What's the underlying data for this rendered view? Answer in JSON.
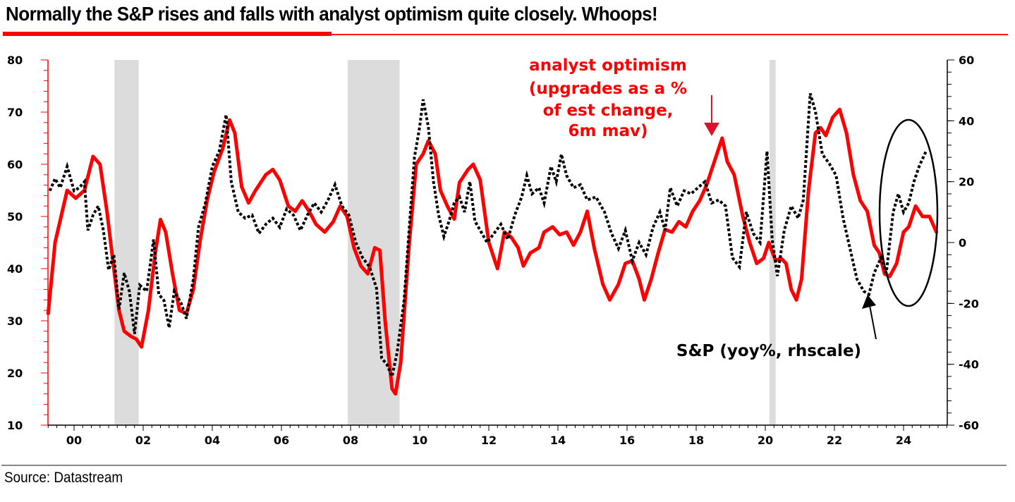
{
  "title": "Normally the S&P rises and falls with analyst optimism quite closely. Whoops!",
  "source": "Source: Datastream",
  "colors": {
    "analyst": "#ff0000",
    "sp": "#000000",
    "recession": "#dcdcdc",
    "title_rule": "#ff0000"
  },
  "chart_data": {
    "type": "line",
    "title": "Normally the S&P rises and falls with analyst optimism quite closely. Whoops!",
    "xlabel": "",
    "x_range": [
      1999.25,
      2025.75
    ],
    "x_ticks": [
      "00",
      "02",
      "04",
      "06",
      "08",
      "10",
      "12",
      "14",
      "16",
      "18",
      "20",
      "22",
      "24"
    ],
    "x_tick_years": [
      2000,
      2002,
      2004,
      2006,
      2008,
      2010,
      2012,
      2014,
      2016,
      2018,
      2020,
      2022,
      2024
    ],
    "y_left": {
      "label": "",
      "range": [
        10,
        80
      ],
      "ticks": [
        "80",
        "70",
        "60",
        "50",
        "40",
        "30",
        "20",
        "10"
      ],
      "tick_values": [
        80,
        70,
        60,
        50,
        40,
        30,
        20,
        10
      ]
    },
    "y_right": {
      "label": "",
      "range": [
        -60,
        60
      ],
      "ticks": [
        "60",
        "40",
        "20",
        "0",
        "-20",
        "-40",
        "-60"
      ],
      "tick_values": [
        60,
        40,
        20,
        0,
        -20,
        -40,
        -60
      ]
    },
    "recession_shading": [
      [
        2001.17,
        2001.87
      ],
      [
        2007.92,
        2009.42
      ],
      [
        2020.12,
        2020.3
      ]
    ],
    "grid": false,
    "series": [
      {
        "name": "analyst optimism (upgrades as a % of est change, 6m mav)",
        "axis": "left",
        "style": "solid",
        "points": [
          [
            1999.25,
            31.4
          ],
          [
            1999.45,
            45
          ],
          [
            1999.8,
            55
          ],
          [
            2000.05,
            53.5
          ],
          [
            2000.3,
            55
          ],
          [
            2000.55,
            61.5
          ],
          [
            2000.75,
            60
          ],
          [
            2000.95,
            51
          ],
          [
            2001.15,
            40
          ],
          [
            2001.3,
            32
          ],
          [
            2001.45,
            28
          ],
          [
            2001.65,
            27
          ],
          [
            2001.8,
            26.5
          ],
          [
            2001.95,
            25
          ],
          [
            2002.15,
            32
          ],
          [
            2002.35,
            43
          ],
          [
            2002.5,
            49.4
          ],
          [
            2002.65,
            47
          ],
          [
            2002.85,
            39
          ],
          [
            2003.05,
            32
          ],
          [
            2003.25,
            31.4
          ],
          [
            2003.45,
            36
          ],
          [
            2003.65,
            45.5
          ],
          [
            2003.85,
            53
          ],
          [
            2004.05,
            58.5
          ],
          [
            2004.3,
            63
          ],
          [
            2004.5,
            68.5
          ],
          [
            2004.65,
            66
          ],
          [
            2004.85,
            55.7
          ],
          [
            2005.05,
            52.6
          ],
          [
            2005.25,
            55
          ],
          [
            2005.55,
            58
          ],
          [
            2005.75,
            59
          ],
          [
            2005.95,
            57
          ],
          [
            2006.2,
            52
          ],
          [
            2006.4,
            51
          ],
          [
            2006.6,
            53
          ],
          [
            2006.8,
            51
          ],
          [
            2007.0,
            48.5
          ],
          [
            2007.25,
            47
          ],
          [
            2007.5,
            49
          ],
          [
            2007.7,
            52
          ],
          [
            2007.9,
            50
          ],
          [
            2008.1,
            44
          ],
          [
            2008.3,
            40.5
          ],
          [
            2008.5,
            39
          ],
          [
            2008.7,
            44
          ],
          [
            2008.85,
            43.5
          ],
          [
            2009.0,
            30
          ],
          [
            2009.2,
            17
          ],
          [
            2009.3,
            16
          ],
          [
            2009.45,
            22
          ],
          [
            2009.7,
            45
          ],
          [
            2009.9,
            60
          ],
          [
            2010.1,
            62
          ],
          [
            2010.25,
            64.5
          ],
          [
            2010.45,
            62
          ],
          [
            2010.6,
            55
          ],
          [
            2010.8,
            52
          ],
          [
            2011.0,
            49.5
          ],
          [
            2011.15,
            56.5
          ],
          [
            2011.4,
            59
          ],
          [
            2011.55,
            60
          ],
          [
            2011.75,
            57
          ],
          [
            2012.0,
            45
          ],
          [
            2012.25,
            40
          ],
          [
            2012.45,
            47
          ],
          [
            2012.65,
            46
          ],
          [
            2012.85,
            44
          ],
          [
            2013.0,
            40.5
          ],
          [
            2013.2,
            43
          ],
          [
            2013.45,
            44
          ],
          [
            2013.6,
            47
          ],
          [
            2013.85,
            48
          ],
          [
            2014.05,
            46.5
          ],
          [
            2014.25,
            47
          ],
          [
            2014.45,
            44.5
          ],
          [
            2014.65,
            47
          ],
          [
            2014.85,
            51
          ],
          [
            2015.05,
            44
          ],
          [
            2015.3,
            37
          ],
          [
            2015.5,
            34
          ],
          [
            2015.75,
            37
          ],
          [
            2015.95,
            41
          ],
          [
            2016.15,
            41.5
          ],
          [
            2016.35,
            38
          ],
          [
            2016.5,
            34
          ],
          [
            2016.7,
            38
          ],
          [
            2016.9,
            43
          ],
          [
            2017.1,
            47.5
          ],
          [
            2017.3,
            47
          ],
          [
            2017.5,
            49
          ],
          [
            2017.7,
            48
          ],
          [
            2017.9,
            51
          ],
          [
            2018.1,
            53
          ],
          [
            2018.3,
            56
          ],
          [
            2018.5,
            60
          ],
          [
            2018.75,
            65
          ],
          [
            2018.9,
            60.5
          ],
          [
            2019.1,
            58
          ],
          [
            2019.35,
            50
          ],
          [
            2019.55,
            45
          ],
          [
            2019.75,
            41
          ],
          [
            2019.95,
            42
          ],
          [
            2020.1,
            45
          ],
          [
            2020.3,
            41.5
          ],
          [
            2020.45,
            42
          ],
          [
            2020.6,
            41
          ],
          [
            2020.75,
            36
          ],
          [
            2020.9,
            34
          ],
          [
            2021.05,
            38
          ],
          [
            2021.25,
            55
          ],
          [
            2021.45,
            66
          ],
          [
            2021.6,
            67
          ],
          [
            2021.75,
            65.5
          ],
          [
            2021.95,
            69
          ],
          [
            2022.15,
            70.5
          ],
          [
            2022.35,
            66
          ],
          [
            2022.55,
            58
          ],
          [
            2022.75,
            53
          ],
          [
            2022.95,
            51
          ],
          [
            2023.15,
            44.5
          ],
          [
            2023.3,
            43
          ],
          [
            2023.45,
            39
          ],
          [
            2023.6,
            38.5
          ],
          [
            2023.8,
            41
          ],
          [
            2024.0,
            47
          ],
          [
            2024.15,
            48
          ],
          [
            2024.35,
            52
          ],
          [
            2024.55,
            50
          ],
          [
            2024.75,
            50
          ],
          [
            2024.95,
            47
          ]
        ]
      },
      {
        "name": "S&P (yoy%, rhscale)",
        "axis": "right",
        "style": "dotted",
        "points": [
          [
            1999.3,
            17
          ],
          [
            1999.45,
            21
          ],
          [
            1999.6,
            18
          ],
          [
            1999.8,
            25
          ],
          [
            2000.0,
            17
          ],
          [
            2000.15,
            18
          ],
          [
            2000.3,
            20
          ],
          [
            2000.4,
            4
          ],
          [
            2000.55,
            9
          ],
          [
            2000.7,
            12
          ],
          [
            2000.85,
            4
          ],
          [
            2001.0,
            -9
          ],
          [
            2001.15,
            -4
          ],
          [
            2001.3,
            -22
          ],
          [
            2001.45,
            -10
          ],
          [
            2001.6,
            -16
          ],
          [
            2001.75,
            -30
          ],
          [
            2001.9,
            -14
          ],
          [
            2002.1,
            -16
          ],
          [
            2002.3,
            1
          ],
          [
            2002.45,
            -17
          ],
          [
            2002.6,
            -19
          ],
          [
            2002.75,
            -28
          ],
          [
            2002.9,
            -16
          ],
          [
            2003.1,
            -20
          ],
          [
            2003.25,
            -25
          ],
          [
            2003.45,
            -12
          ],
          [
            2003.6,
            5
          ],
          [
            2003.8,
            13
          ],
          [
            2004.0,
            25
          ],
          [
            2004.2,
            30
          ],
          [
            2004.4,
            42
          ],
          [
            2004.55,
            20
          ],
          [
            2004.75,
            10
          ],
          [
            2004.95,
            8
          ],
          [
            2005.15,
            9
          ],
          [
            2005.35,
            3
          ],
          [
            2005.55,
            6
          ],
          [
            2005.75,
            8
          ],
          [
            2005.95,
            5
          ],
          [
            2006.15,
            11
          ],
          [
            2006.35,
            9
          ],
          [
            2006.55,
            4
          ],
          [
            2006.75,
            9
          ],
          [
            2006.95,
            13
          ],
          [
            2007.15,
            10
          ],
          [
            2007.35,
            14
          ],
          [
            2007.55,
            19
          ],
          [
            2007.75,
            12
          ],
          [
            2007.95,
            9
          ],
          [
            2008.15,
            0
          ],
          [
            2008.35,
            -5
          ],
          [
            2008.55,
            -8
          ],
          [
            2008.75,
            -15
          ],
          [
            2008.9,
            -38
          ],
          [
            2009.05,
            -40
          ],
          [
            2009.2,
            -44
          ],
          [
            2009.35,
            -36
          ],
          [
            2009.55,
            -19
          ],
          [
            2009.7,
            5
          ],
          [
            2009.85,
            28
          ],
          [
            2010.0,
            38
          ],
          [
            2010.1,
            47
          ],
          [
            2010.25,
            38
          ],
          [
            2010.4,
            20
          ],
          [
            2010.55,
            9
          ],
          [
            2010.7,
            2
          ],
          [
            2010.85,
            7
          ],
          [
            2011.0,
            13
          ],
          [
            2011.15,
            15
          ],
          [
            2011.3,
            10
          ],
          [
            2011.45,
            20
          ],
          [
            2011.6,
            7
          ],
          [
            2011.75,
            4
          ],
          [
            2011.95,
            0
          ],
          [
            2012.15,
            3
          ],
          [
            2012.35,
            6
          ],
          [
            2012.55,
            1
          ],
          [
            2012.75,
            9
          ],
          [
            2012.95,
            15
          ],
          [
            2013.1,
            22
          ],
          [
            2013.25,
            16
          ],
          [
            2013.45,
            18
          ],
          [
            2013.6,
            13
          ],
          [
            2013.8,
            25
          ],
          [
            2013.95,
            20
          ],
          [
            2014.1,
            29
          ],
          [
            2014.25,
            22
          ],
          [
            2014.45,
            18
          ],
          [
            2014.65,
            19
          ],
          [
            2014.85,
            14
          ],
          [
            2015.1,
            15
          ],
          [
            2015.35,
            10
          ],
          [
            2015.55,
            3
          ],
          [
            2015.75,
            -2
          ],
          [
            2015.95,
            4
          ],
          [
            2016.15,
            -6
          ],
          [
            2016.35,
            0
          ],
          [
            2016.55,
            -4
          ],
          [
            2016.75,
            5
          ],
          [
            2016.95,
            10
          ],
          [
            2017.1,
            4
          ],
          [
            2017.25,
            18
          ],
          [
            2017.45,
            12
          ],
          [
            2017.65,
            17
          ],
          [
            2017.85,
            16
          ],
          [
            2018.05,
            18
          ],
          [
            2018.25,
            20
          ],
          [
            2018.45,
            13
          ],
          [
            2018.65,
            14
          ],
          [
            2018.85,
            12
          ],
          [
            2019.05,
            -5
          ],
          [
            2019.25,
            -8
          ],
          [
            2019.45,
            10
          ],
          [
            2019.65,
            3
          ],
          [
            2019.85,
            0
          ],
          [
            2020.05,
            30
          ],
          [
            2020.2,
            1
          ],
          [
            2020.35,
            -11
          ],
          [
            2020.55,
            4
          ],
          [
            2020.75,
            12
          ],
          [
            2020.95,
            8
          ],
          [
            2021.1,
            14
          ],
          [
            2021.3,
            49
          ],
          [
            2021.45,
            43
          ],
          [
            2021.65,
            29
          ],
          [
            2021.85,
            26
          ],
          [
            2022.05,
            22
          ],
          [
            2022.25,
            8
          ],
          [
            2022.45,
            -2
          ],
          [
            2022.65,
            -12
          ],
          [
            2022.85,
            -16
          ],
          [
            2023.0,
            -17
          ],
          [
            2023.15,
            -10
          ],
          [
            2023.35,
            -5
          ],
          [
            2023.5,
            -10
          ],
          [
            2023.7,
            10
          ],
          [
            2023.85,
            16
          ],
          [
            2024.0,
            10
          ],
          [
            2024.15,
            13
          ],
          [
            2024.3,
            20
          ],
          [
            2024.45,
            25
          ],
          [
            2024.65,
            30
          ]
        ]
      }
    ],
    "annotations": [
      {
        "text_lines": [
          "analyst optimism",
          "(upgrades as a %",
          "of est change,",
          "6m mav)"
        ],
        "color": "#ff0000",
        "points_to": [
          2018.75,
          65
        ],
        "axis": "left"
      },
      {
        "text_lines": [
          "S&P (yoy%, rhscale)"
        ],
        "color": "#000000",
        "points_to": [
          2022.9,
          -18
        ],
        "axis": "right"
      },
      {
        "shape": "ellipse",
        "around_years": [
          2023.5,
          2025.0
        ],
        "note": "circle highlighting 2023-2024 divergence"
      }
    ]
  }
}
